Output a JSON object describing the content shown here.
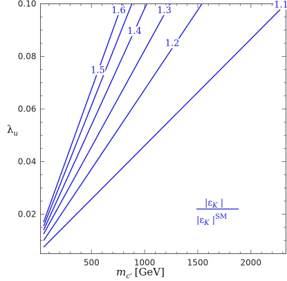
{
  "chart_data": {
    "type": "line",
    "title": "",
    "xlabel_main": "m",
    "xlabel_sub": "c'",
    "xlabel_unit": "[GeV]",
    "ylabel_main": "λ",
    "ylabel_sub": "u",
    "xlim": [
      20,
      2330
    ],
    "ylim": [
      0.005,
      0.1
    ],
    "xticks": [
      500,
      1000,
      1500,
      2000
    ],
    "xtick_labels": [
      "500",
      "1000",
      "1500",
      "2000"
    ],
    "yticks": [
      0.02,
      0.04,
      0.06,
      0.08,
      0.1
    ],
    "ytick_labels": [
      "0.02",
      "0.04",
      "0.06",
      "0.08",
      "0.10"
    ],
    "legend_numerator": "|ε",
    "legend_denominator": "|ε",
    "legend_sub": "K",
    "legend_sup": "SM",
    "line_color": "#1a1adb",
    "series": [
      {
        "label": "1.1",
        "points": [
          [
            50,
            0.0075
          ],
          [
            2280,
            0.098
          ]
        ],
        "label_at": [
          2285,
          0.0986
        ]
      },
      {
        "label": "1.2",
        "points": [
          [
            50,
            0.01
          ],
          [
            1540,
            0.1
          ]
        ],
        "label_at": [
          1260,
          0.0839
        ]
      },
      {
        "label": "1.3",
        "points": [
          [
            50,
            0.0125
          ],
          [
            1240,
            0.1
          ]
        ],
        "label_at": [
          1185,
          0.0965
        ]
      },
      {
        "label": "1.4",
        "points": [
          [
            50,
            0.014
          ],
          [
            1020,
            0.1
          ]
        ],
        "label_at": [
          905,
          0.0885
        ]
      },
      {
        "label": "1.5",
        "points": [
          [
            50,
            0.0155
          ],
          [
            880,
            0.1
          ]
        ],
        "label_at": [
          560,
          0.0737
        ]
      },
      {
        "label": "1.6",
        "points": [
          [
            50,
            0.017
          ],
          [
            790,
            0.1
          ]
        ],
        "label_at": [
          755,
          0.0965
        ]
      }
    ]
  }
}
